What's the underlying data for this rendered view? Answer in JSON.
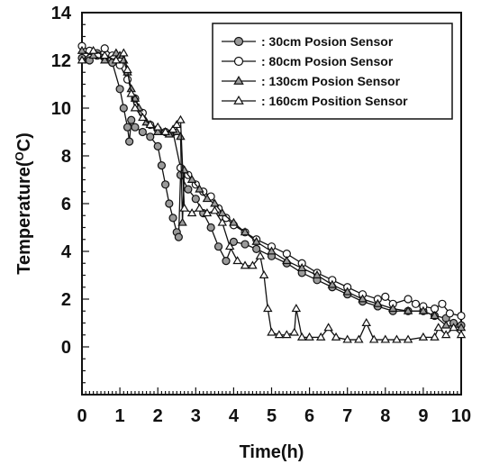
{
  "chart_data": {
    "type": "line",
    "title": "",
    "xlabel": "Time(h)",
    "ylabel": "Temperature(°C)",
    "ylabel_base": "Temperature(",
    "ylabel_sup": "O",
    "ylabel_end": "C)",
    "xlim": [
      0,
      10
    ],
    "ylim": [
      -2,
      14
    ],
    "xticks": [
      "0",
      "1",
      "2",
      "3",
      "4",
      "5",
      "6",
      "7",
      "8",
      "9",
      "10"
    ],
    "yticks": [
      "0",
      "2",
      "4",
      "6",
      "8",
      "10",
      "12",
      "14"
    ],
    "grid": false,
    "legend_position": "top-right",
    "series": [
      {
        "name": ": 30cm Posion Sensor",
        "marker": "circle-filled",
        "x": [
          0,
          0.2,
          0.4,
          0.6,
          0.8,
          1.0,
          1.1,
          1.2,
          1.25,
          1.3,
          1.4,
          1.6,
          1.8,
          2.0,
          2.1,
          2.2,
          2.3,
          2.4,
          2.5,
          2.55,
          2.6,
          2.8,
          3.0,
          3.2,
          3.4,
          3.6,
          3.8,
          4.0,
          4.3,
          4.6,
          5.0,
          5.4,
          5.8,
          6.2,
          6.6,
          7.0,
          7.4,
          7.8,
          8.2,
          8.6,
          9.0,
          9.3,
          9.6,
          9.8,
          10.0
        ],
        "y": [
          12.1,
          12.0,
          12.3,
          12.1,
          11.9,
          10.8,
          10.0,
          9.2,
          8.6,
          9.5,
          9.2,
          9.0,
          8.8,
          8.4,
          7.6,
          6.8,
          6.0,
          5.4,
          4.8,
          4.6,
          7.2,
          6.6,
          6.2,
          5.6,
          5.0,
          4.2,
          3.6,
          4.4,
          4.3,
          4.1,
          3.8,
          3.5,
          3.1,
          2.8,
          2.5,
          2.2,
          1.9,
          1.7,
          1.5,
          1.5,
          1.5,
          1.3,
          1.2,
          1.0,
          0.9
        ]
      },
      {
        "name": ": 80cm Posion Sensor",
        "marker": "circle-open",
        "x": [
          0,
          0.2,
          0.4,
          0.6,
          0.8,
          1.0,
          1.2,
          1.4,
          1.6,
          1.8,
          2.0,
          2.2,
          2.4,
          2.6,
          2.8,
          3.0,
          3.2,
          3.4,
          3.6,
          3.8,
          4.0,
          4.3,
          4.6,
          5.0,
          5.4,
          5.8,
          6.2,
          6.6,
          7.0,
          7.4,
          7.8,
          8.0,
          8.2,
          8.6,
          8.8,
          9.0,
          9.3,
          9.5,
          9.7,
          10.0
        ],
        "y": [
          12.6,
          12.4,
          12.2,
          12.5,
          12.2,
          11.8,
          11.2,
          10.4,
          9.8,
          9.3,
          9.1,
          9.0,
          9.0,
          7.5,
          7.2,
          6.8,
          6.5,
          6.3,
          5.8,
          5.4,
          5.1,
          4.8,
          4.5,
          4.2,
          3.9,
          3.5,
          3.1,
          2.8,
          2.5,
          2.2,
          2.0,
          2.1,
          1.8,
          2.0,
          1.8,
          1.7,
          1.6,
          1.8,
          1.4,
          1.3
        ]
      },
      {
        "name": ": 130cm Posion Sensor",
        "marker": "triangle-filled",
        "x": [
          0,
          0.3,
          0.6,
          0.9,
          1.0,
          1.1,
          1.2,
          1.3,
          1.4,
          1.5,
          1.7,
          2.0,
          2.3,
          2.5,
          2.6,
          2.65,
          2.7,
          2.9,
          3.1,
          3.3,
          3.5,
          3.7,
          4.0,
          4.3,
          4.6,
          5.0,
          5.4,
          5.8,
          6.2,
          6.6,
          7.0,
          7.4,
          7.8,
          8.2,
          8.6,
          9.0,
          9.3,
          9.6,
          10.0
        ],
        "y": [
          12.4,
          12.2,
          12.0,
          12.3,
          12.2,
          12.0,
          11.5,
          10.8,
          10.4,
          10.0,
          9.4,
          9.0,
          8.9,
          9.0,
          8.8,
          5.2,
          7.4,
          7.0,
          6.6,
          6.2,
          6.0,
          5.6,
          5.2,
          4.8,
          4.4,
          4.0,
          3.6,
          3.3,
          3.0,
          2.6,
          2.3,
          2.0,
          1.8,
          1.6,
          1.5,
          1.5,
          1.3,
          0.9,
          0.8
        ]
      },
      {
        "name": ": 160cm Position Sensor",
        "marker": "triangle-open",
        "x": [
          0,
          0.3,
          0.6,
          0.9,
          1.1,
          1.2,
          1.3,
          1.4,
          1.6,
          1.8,
          2.0,
          2.2,
          2.4,
          2.5,
          2.6,
          2.7,
          2.9,
          3.1,
          3.3,
          3.5,
          3.7,
          3.9,
          4.1,
          4.3,
          4.5,
          4.7,
          4.8,
          4.9,
          5.0,
          5.2,
          5.4,
          5.6,
          5.65,
          5.8,
          6.0,
          6.3,
          6.5,
          6.7,
          7.0,
          7.3,
          7.5,
          7.7,
          8.0,
          8.3,
          8.6,
          9.0,
          9.3,
          9.4,
          9.6,
          9.8,
          10.0
        ],
        "y": [
          12.0,
          12.4,
          12.2,
          12.0,
          12.3,
          11.6,
          10.6,
          10.0,
          9.6,
          9.3,
          9.2,
          9.0,
          9.1,
          9.3,
          9.5,
          5.8,
          5.6,
          5.8,
          5.6,
          5.7,
          5.2,
          4.2,
          3.6,
          3.4,
          3.4,
          3.8,
          3.0,
          1.6,
          0.6,
          0.5,
          0.5,
          0.6,
          1.6,
          0.4,
          0.4,
          0.4,
          0.8,
          0.4,
          0.3,
          0.3,
          1.0,
          0.3,
          0.3,
          0.3,
          0.3,
          0.4,
          0.4,
          0.8,
          0.5,
          0.8,
          0.5
        ]
      }
    ]
  }
}
